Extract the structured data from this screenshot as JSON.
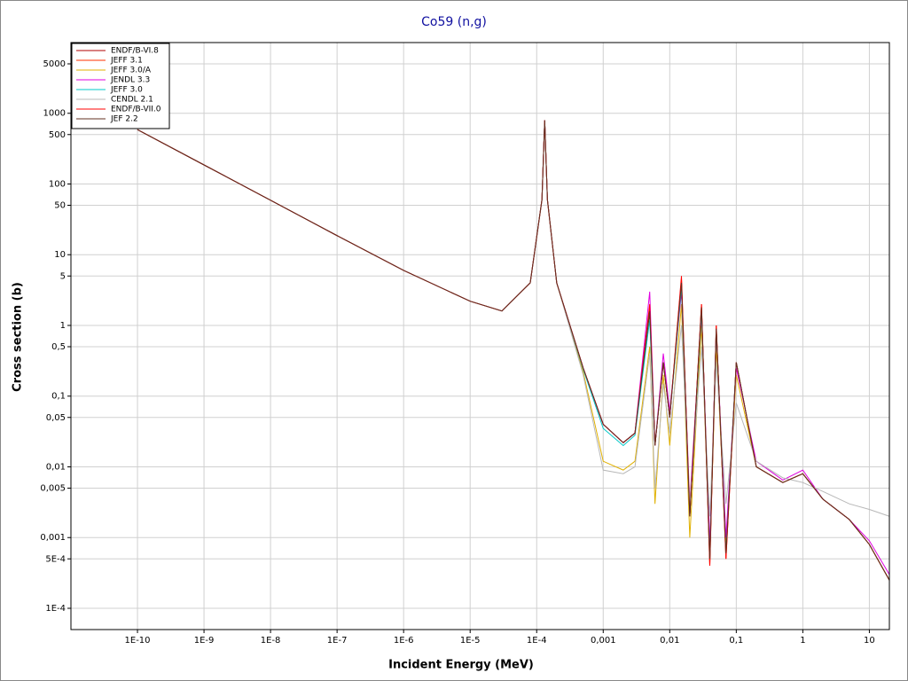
{
  "chart_data": {
    "type": "line",
    "title": "Co59 (n,g)",
    "x_label": "Incident Energy (MeV)",
    "y_label": "Cross section (b)",
    "x_log": true,
    "y_log": true,
    "grid": true,
    "legend": "top-left",
    "xlim": [
      1e-11,
      20
    ],
    "ylim": [
      5e-05,
      10000
    ],
    "xticks": [
      {
        "value": 1e-10,
        "label": "1E-10"
      },
      {
        "value": 1e-09,
        "label": "1E-9"
      },
      {
        "value": 1e-08,
        "label": "1E-8"
      },
      {
        "value": 1e-07,
        "label": "1E-7"
      },
      {
        "value": 1e-06,
        "label": "1E-6"
      },
      {
        "value": 1e-05,
        "label": "1E-5"
      },
      {
        "value": 0.0001,
        "label": "1E-4"
      },
      {
        "value": 0.001,
        "label": "0,001"
      },
      {
        "value": 0.01,
        "label": "0,01"
      },
      {
        "value": 0.1,
        "label": "0,1"
      },
      1,
      10
    ],
    "yticks": [
      5000,
      1000,
      500,
      100,
      50,
      10,
      5,
      1,
      {
        "value": 0.5,
        "label": "0,5"
      },
      {
        "value": 0.1,
        "label": "0,1"
      },
      {
        "value": 0.05,
        "label": "0,05"
      },
      {
        "value": 0.01,
        "label": "0,01"
      },
      {
        "value": 0.005,
        "label": "0,005"
      },
      {
        "value": 0.001,
        "label": "0,001"
      },
      {
        "value": 0.0005,
        "label": "5E-4"
      },
      {
        "value": 0.0001,
        "label": "1E-4"
      }
    ],
    "x": [
      1e-10,
      1e-09,
      1e-08,
      1e-07,
      1e-06,
      1e-05,
      3e-05,
      8e-05,
      0.00012,
      0.000132,
      0.000145,
      0.0002,
      0.0005,
      0.001,
      0.002,
      0.003,
      0.005,
      0.006,
      0.008,
      0.01,
      0.015,
      0.02,
      0.03,
      0.04,
      0.05,
      0.07,
      0.1,
      0.2,
      0.5,
      1,
      2,
      5,
      10,
      20
    ],
    "series": [
      {
        "name": "ENDF/B-VI.8",
        "color": "#b00000",
        "values": [
          588,
          186,
          59,
          18.6,
          6.0,
          2.2,
          1.6,
          4,
          60,
          800,
          60,
          4,
          0.25,
          0.04,
          0.022,
          0.03,
          1.5,
          0.02,
          0.3,
          0.05,
          4,
          0.002,
          1.8,
          0.0005,
          0.9,
          0.0006,
          0.3,
          0.01,
          0.006,
          0.008,
          0.0035,
          0.0018,
          0.0008,
          0.00025
        ]
      },
      {
        "name": "JEFF 3.1",
        "color": "#ff3000",
        "values": [
          588,
          186,
          59,
          18.6,
          6.0,
          2.2,
          1.6,
          4,
          60,
          800,
          60,
          4,
          0.25,
          0.04,
          0.022,
          0.03,
          1.8,
          0.02,
          0.3,
          0.05,
          4.5,
          0.002,
          2,
          0.0004,
          1,
          0.0005,
          0.3,
          0.01,
          0.006,
          0.008,
          0.0035,
          0.0018,
          0.0008,
          0.00025
        ]
      },
      {
        "name": "JEFF 3.0/A",
        "color": "#e0b000",
        "values": [
          588,
          186,
          59,
          18.6,
          6.0,
          2.2,
          1.6,
          4,
          60,
          780,
          60,
          4,
          0.22,
          0.012,
          0.009,
          0.012,
          0.5,
          0.003,
          0.2,
          0.02,
          2,
          0.001,
          1,
          0.0006,
          0.5,
          0.0008,
          0.2,
          0.01,
          0.006,
          0.008,
          0.0035,
          0.0018,
          0.0008,
          0.00025
        ]
      },
      {
        "name": "JENDL 3.3",
        "color": "#e000e0",
        "values": [
          588,
          186,
          59,
          18.6,
          6.0,
          2.2,
          1.6,
          4,
          60,
          800,
          60,
          4,
          0.25,
          0.04,
          0.022,
          0.03,
          3,
          0.02,
          0.4,
          0.06,
          3,
          0.003,
          1.5,
          0.0008,
          0.8,
          0.001,
          0.25,
          0.012,
          0.0065,
          0.009,
          0.0035,
          0.0018,
          0.0009,
          0.0003
        ]
      },
      {
        "name": "JEFF 3.0",
        "color": "#00c8c8",
        "values": [
          588,
          186,
          59,
          18.6,
          6.0,
          2.2,
          1.6,
          4,
          60,
          790,
          60,
          4,
          0.24,
          0.035,
          0.02,
          0.028,
          1.2,
          0.02,
          0.3,
          0.05,
          3.5,
          0.002,
          1.6,
          0.0005,
          0.9,
          0.0006,
          0.3,
          0.01,
          0.006,
          0.008,
          0.0035,
          0.0018,
          0.0008,
          0.00025
        ]
      },
      {
        "name": "CENDL 2.1",
        "color": "#b8b8b8",
        "values": [
          588,
          186,
          59,
          18.6,
          6.0,
          2.2,
          1.6,
          4,
          58,
          760,
          58,
          4,
          0.2,
          0.009,
          0.008,
          0.01,
          0.4,
          0.005,
          0.15,
          0.03,
          1,
          0.003,
          0.5,
          0.002,
          0.3,
          0.003,
          0.08,
          0.012,
          0.007,
          0.006,
          0.0045,
          0.003,
          0.0025,
          0.002
        ]
      },
      {
        "name": "ENDF/B-VII.0",
        "color": "#ff0000",
        "values": [
          588,
          186,
          59,
          18.6,
          6.0,
          2.2,
          1.6,
          4,
          60,
          800,
          60,
          4,
          0.25,
          0.04,
          0.022,
          0.03,
          2,
          0.02,
          0.3,
          0.05,
          5,
          0.002,
          2,
          0.0004,
          1,
          0.0005,
          0.3,
          0.01,
          0.006,
          0.008,
          0.0035,
          0.0018,
          0.0008,
          0.00025
        ]
      },
      {
        "name": "JEF 2.2",
        "color": "#603020",
        "values": [
          588,
          186,
          59,
          18.6,
          6.0,
          2.2,
          1.6,
          4,
          60,
          800,
          60,
          4,
          0.25,
          0.04,
          0.022,
          0.03,
          1.6,
          0.02,
          0.3,
          0.05,
          4,
          0.002,
          1.8,
          0.0005,
          0.9,
          0.0006,
          0.3,
          0.01,
          0.006,
          0.008,
          0.0035,
          0.0018,
          0.0008,
          0.00025
        ]
      }
    ]
  }
}
